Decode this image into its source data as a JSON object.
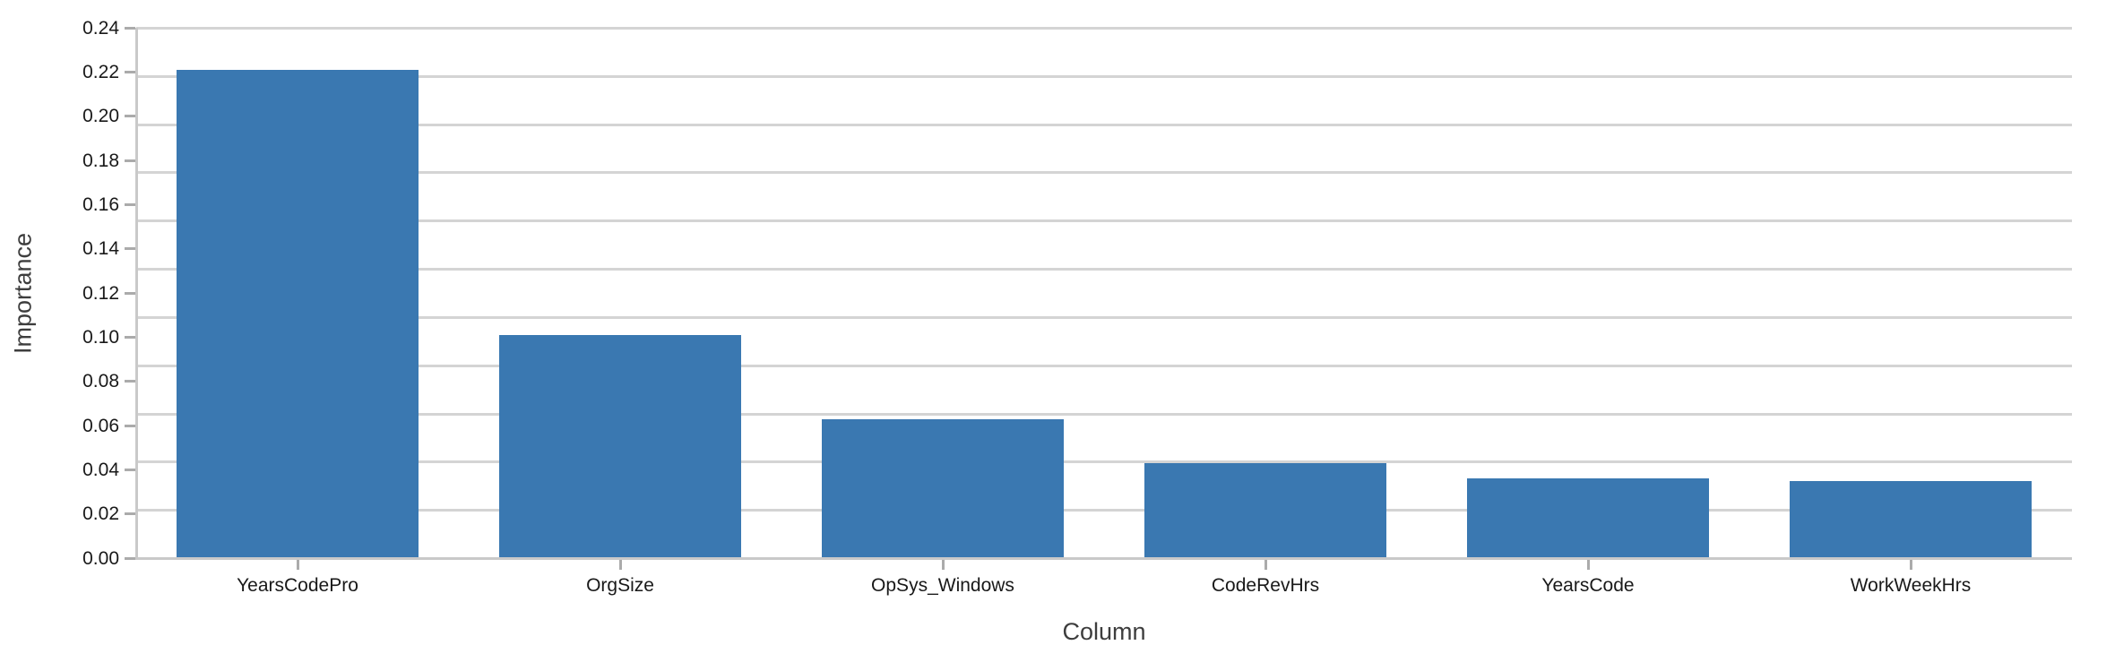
{
  "chart_data": {
    "type": "bar",
    "title": "",
    "xlabel": "Column",
    "ylabel": "Importance",
    "categories": [
      "YearsCodePro",
      "OrgSize",
      "OpSys_Windows",
      "CodeRevHrs",
      "YearsCode",
      "WorkWeekHrs"
    ],
    "values": [
      0.221,
      0.101,
      0.063,
      0.043,
      0.036,
      0.035
    ],
    "ylim": [
      0,
      0.24
    ],
    "y_tick_labels": [
      "0.00",
      "0.02",
      "0.04",
      "0.06",
      "0.08",
      "0.10",
      "0.12",
      "0.14",
      "0.16",
      "0.18",
      "0.20",
      "0.22",
      "0.24"
    ],
    "grid": true,
    "grid_divisions": 11,
    "legend": "none",
    "bar_color": "#3a78b1",
    "grid_color": "#d4d4d4",
    "spine_color": "#c9c9c9",
    "tick_color": "#ababab",
    "tick_label_color": "#191919",
    "axis_title_color": "#3d3d3d"
  }
}
